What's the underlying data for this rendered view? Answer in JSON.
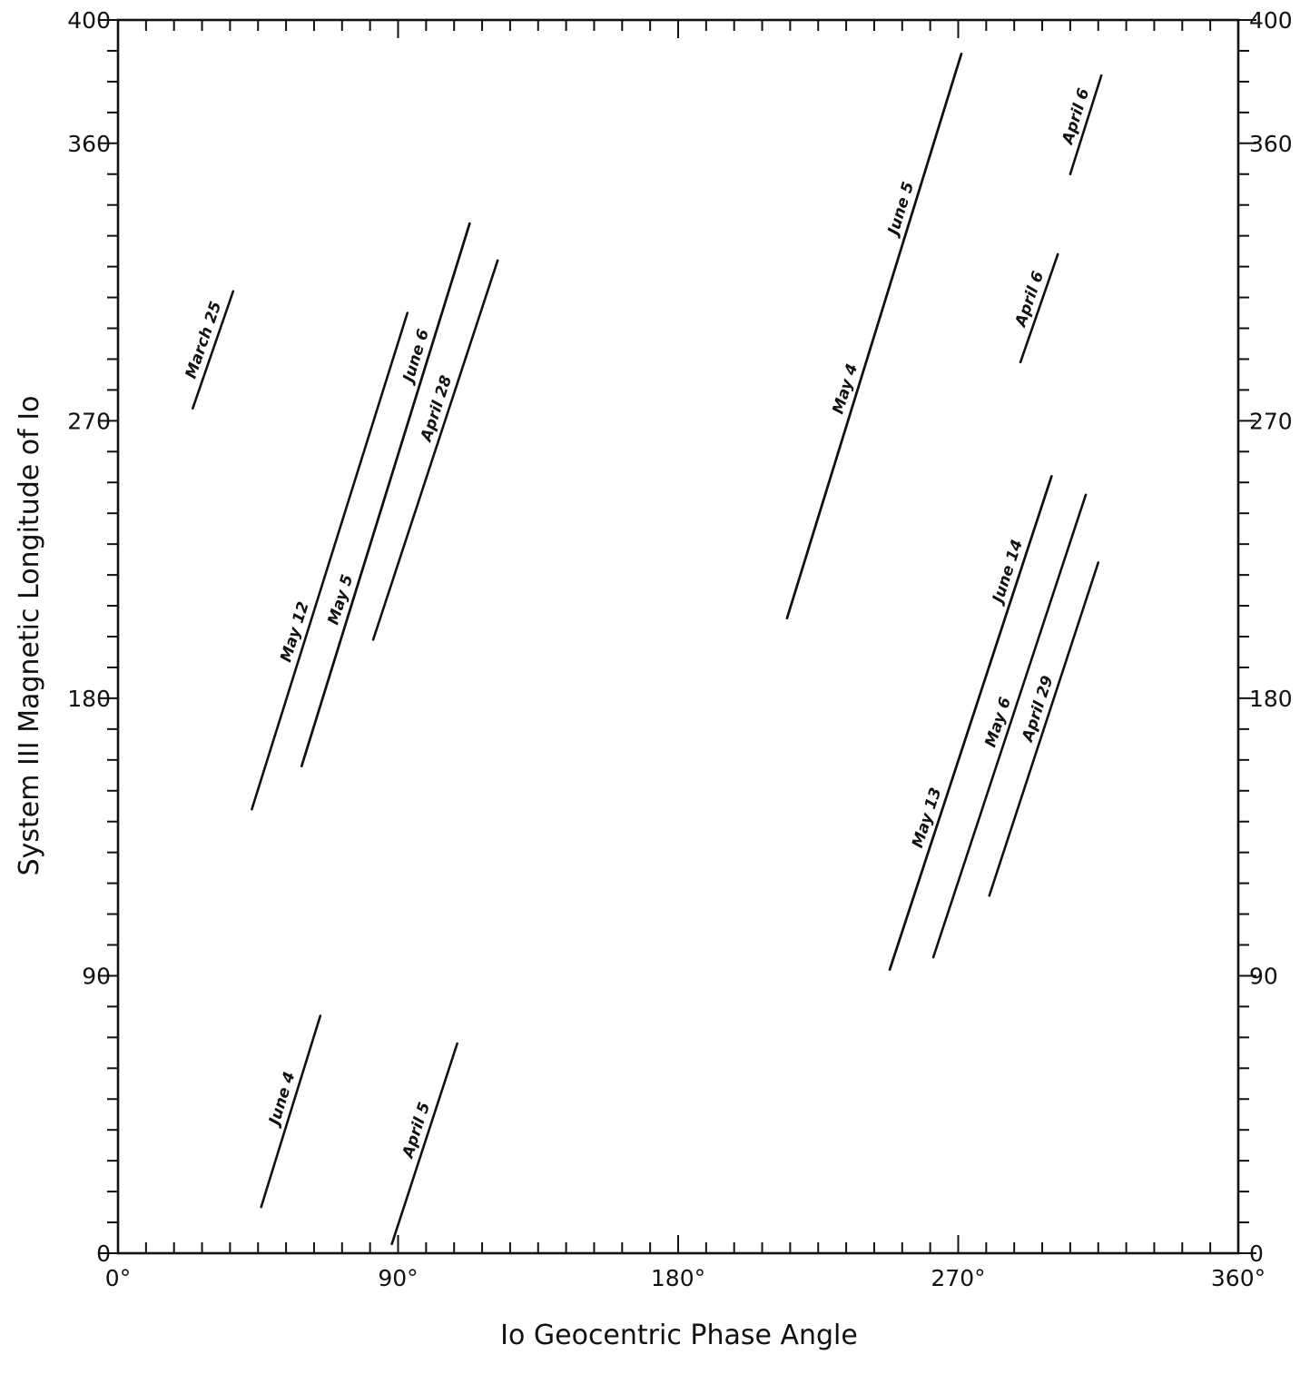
{
  "chart_data": {
    "type": "line",
    "xlabel": "Io Geocentric Phase Angle",
    "ylabel": "System III Magnetic Longitude of Io",
    "xlim": [
      0,
      360
    ],
    "ylim": [
      0,
      400
    ],
    "x_ticks": [
      {
        "value": 0,
        "label": "0°"
      },
      {
        "value": 90,
        "label": "90°"
      },
      {
        "value": 180,
        "label": "180°"
      },
      {
        "value": 270,
        "label": "270°"
      },
      {
        "value": 360,
        "label": "360°"
      }
    ],
    "y_ticks_left": [
      {
        "value": 0,
        "label": "0"
      },
      {
        "value": 90,
        "label": "90"
      },
      {
        "value": 180,
        "label": "180"
      },
      {
        "value": 270,
        "label": "270"
      },
      {
        "value": 360,
        "label": "360"
      },
      {
        "value": 400,
        "label": "400"
      }
    ],
    "y_ticks_right": [
      {
        "value": 0,
        "label": "0"
      },
      {
        "value": 90,
        "label": "90"
      },
      {
        "value": 180,
        "label": "180"
      },
      {
        "value": 270,
        "label": "270"
      },
      {
        "value": 360,
        "label": "360"
      },
      {
        "value": 400,
        "label": "400"
      }
    ],
    "x_minor_step": 9,
    "y_minor_step": 10,
    "series": [
      {
        "name": "March 25",
        "x": [
          24,
          37
        ],
        "y": [
          274,
          312
        ]
      },
      {
        "name": "May 12",
        "x": [
          43,
          93
        ],
        "y": [
          144,
          305
        ]
      },
      {
        "name": "June 6",
        "x": [
          59,
          113
        ],
        "y": [
          158,
          334
        ]
      },
      {
        "name": "April 28",
        "x": [
          82,
          122
        ],
        "y": [
          199,
          322
        ]
      },
      {
        "name": "May 5",
        "x": [
          59,
          113
        ],
        "y": [
          158,
          334
        ]
      },
      {
        "name": "June 4",
        "x": [
          46,
          65
        ],
        "y": [
          15,
          77
        ]
      },
      {
        "name": "April 5",
        "x": [
          88,
          109
        ],
        "y": [
          3,
          68
        ]
      },
      {
        "name": "May 4",
        "x": [
          215,
          271
        ],
        "y": [
          206,
          389
        ]
      },
      {
        "name": "June 5",
        "x": [
          215,
          271
        ],
        "y": [
          206,
          389
        ]
      },
      {
        "name": "April 6",
        "x": [
          290,
          302
        ],
        "y": [
          289,
          324
        ]
      },
      {
        "name": "April 6",
        "x": [
          306,
          316
        ],
        "y": [
          350,
          382
        ]
      },
      {
        "name": "June 14",
        "x": [
          248,
          300
        ],
        "y": [
          92,
          252
        ]
      },
      {
        "name": "May 13",
        "x": [
          248,
          300
        ],
        "y": [
          92,
          252
        ]
      },
      {
        "name": "May 6",
        "x": [
          262,
          311
        ],
        "y": [
          96,
          246
        ]
      },
      {
        "name": "April 29",
        "x": [
          280,
          315
        ],
        "y": [
          116,
          224
        ]
      }
    ]
  }
}
